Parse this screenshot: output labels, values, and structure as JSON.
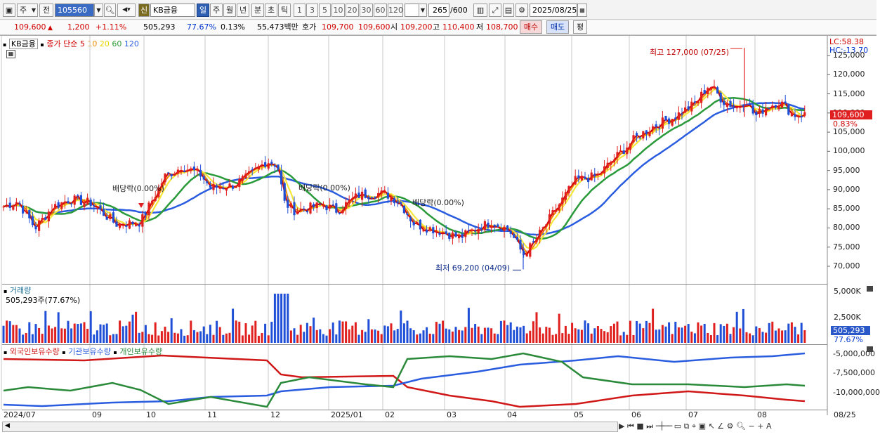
{
  "toolbar": {
    "period_type": "주",
    "prev_label": "전",
    "stock_code": "105560",
    "new_badge": "신",
    "stock_name": "KB금융",
    "interval_buttons": [
      "일",
      "주",
      "월",
      "년",
      "분",
      "초",
      "틱"
    ],
    "minute_buttons": [
      "1",
      "3",
      "5",
      "10",
      "20",
      "30",
      "60",
      "120"
    ],
    "count_display": "265",
    "count_max": "/600",
    "date": "2025/08/25"
  },
  "quote": {
    "price": "109,600",
    "change": "1,200",
    "change_pct": "+1.11%",
    "volume": "505,293",
    "vol_ratio": "77.67%",
    "turnover": "0.13%",
    "amount": "55,473백만",
    "bid_label": "호가",
    "bid1": "109,700",
    "bid2": "109,600",
    "open_label": "시",
    "open": "109,200",
    "high_label": "고",
    "high": "110,400",
    "low_label": "저",
    "low": "108,700",
    "buy_button": "매수",
    "sell_button": "매도",
    "even_button": "평"
  },
  "legend": {
    "stock": "KB금융",
    "ma_label": "종가 단순",
    "ma5": "5",
    "ma10": "10",
    "ma20": "20",
    "ma60": "60",
    "ma120": "120"
  },
  "price_panel": {
    "lc_label": "LC:58.38",
    "hc_label": "HC:-13.70",
    "y_ticks": [
      "125,000",
      "120,000",
      "115,000",
      "110,000",
      "105,000",
      "100,000",
      "95,000",
      "90,000",
      "85,000",
      "80,000",
      "75,000",
      "70,000"
    ],
    "current_price_tag": "109,600",
    "current_pct_tag": "0.83%",
    "high_annotation": "최고 127,000 (07/25)",
    "low_annotation": "최저 69,200 (04/09)",
    "dividend_labels": [
      "배당락(0.00%)",
      "배당락(0.00%)",
      "배당락(0.00%)"
    ]
  },
  "volume_panel": {
    "title": "거래량",
    "value_label": "505,293주(77.67%)",
    "y_ticks": [
      "5,000K",
      "2,500K"
    ],
    "current_tag": "505,293",
    "current_pct_tag": "77.67%"
  },
  "holdings_panel": {
    "series_labels": [
      "외국인보유수량",
      "기관보유수량",
      "개인보유수량"
    ],
    "y_ticks": [
      "-5,000,000",
      "-7,500,000",
      "-10,000,000"
    ]
  },
  "x_axis": {
    "labels": [
      "2024/07",
      "09",
      "10",
      "11",
      "12",
      "2025/01",
      "02",
      "03",
      "04",
      "05",
      "06",
      "07",
      "08",
      "08/25"
    ]
  },
  "chart_data": {
    "type": "candlestick",
    "title": "KB금융",
    "ylim": [
      68000,
      128000
    ],
    "high": 127000,
    "low": 69200,
    "last_close": 109600
  },
  "colors": {
    "up": "#e0201e",
    "down": "#1f4fd6",
    "ma5": "#d10000",
    "ma10": "#f08c00",
    "ma20": "#f5e83a",
    "ma60": "#2a9a3a",
    "ma120": "#2a5ce0"
  }
}
